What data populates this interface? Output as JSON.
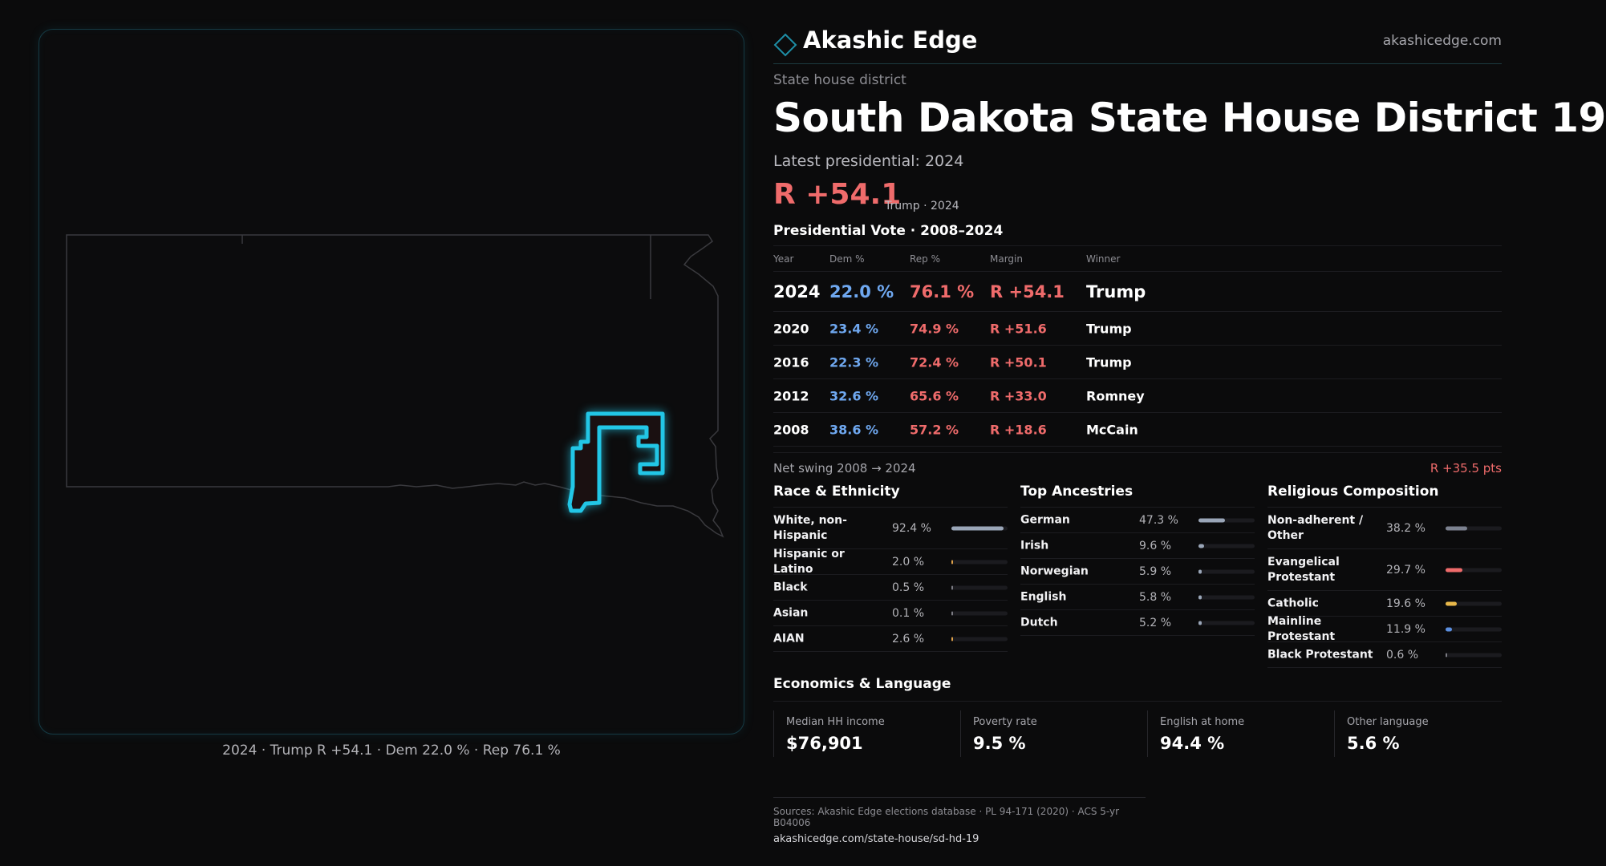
{
  "brand": {
    "name": "Akashic Edge",
    "url": "akashicedge.com",
    "logo_icon": "diamond-outline-icon",
    "accent": "#1e8ea6"
  },
  "header": {
    "kicker": "State house district",
    "title": "South Dakota State House District 19",
    "latest": "Latest presidential: 2024",
    "margin": "R +54.1",
    "margin_note": "Trump · 2024"
  },
  "colors": {
    "dem": "#6fa8f0",
    "rep": "#ef6b6b",
    "district_stroke": "#22c6e6",
    "district_fill": "#1a1011"
  },
  "vote": {
    "title": "Presidential Vote · 2008–2024",
    "columns": [
      "Year",
      "Dem %",
      "Rep %",
      "Margin",
      "Winner"
    ],
    "rows": [
      {
        "year": "2024",
        "dem": "22.0 %",
        "rep": "76.1 %",
        "margin": "R +54.1",
        "winner": "Trump"
      },
      {
        "year": "2020",
        "dem": "23.4 %",
        "rep": "74.9 %",
        "margin": "R +51.6",
        "winner": "Trump"
      },
      {
        "year": "2016",
        "dem": "22.3 %",
        "rep": "72.4 %",
        "margin": "R +50.1",
        "winner": "Trump"
      },
      {
        "year": "2012",
        "dem": "32.6 %",
        "rep": "65.6 %",
        "margin": "R +33.0",
        "winner": "Romney"
      },
      {
        "year": "2008",
        "dem": "38.6 %",
        "rep": "57.2 %",
        "margin": "R +18.6",
        "winner": "McCain"
      }
    ],
    "swing_label": "Net swing 2008 → 2024",
    "swing_value": "R +35.5 pts"
  },
  "race": {
    "title": "Race & Ethnicity",
    "rows": [
      {
        "label": "White, non-Hispanic",
        "value": "92.4 %",
        "pct": 92.4,
        "color": "#9aa6b8"
      },
      {
        "label": "Hispanic or Latino",
        "value": "2.0 %",
        "pct": 2.0,
        "color": "#e0a24a"
      },
      {
        "label": "Black",
        "value": "0.5 %",
        "pct": 0.5,
        "color": "#7c7c84"
      },
      {
        "label": "Asian",
        "value": "0.1 %",
        "pct": 0.1,
        "color": "#7c7c84"
      },
      {
        "label": "AIAN",
        "value": "2.6 %",
        "pct": 2.6,
        "color": "#e0a24a"
      }
    ]
  },
  "ancestry": {
    "title": "Top Ancestries",
    "rows": [
      {
        "label": "German",
        "value": "47.3 %",
        "pct": 47.3,
        "color": "#9aa6b8"
      },
      {
        "label": "Irish",
        "value": "9.6 %",
        "pct": 9.6,
        "color": "#9aa6b8"
      },
      {
        "label": "Norwegian",
        "value": "5.9 %",
        "pct": 5.9,
        "color": "#9aa6b8"
      },
      {
        "label": "English",
        "value": "5.8 %",
        "pct": 5.8,
        "color": "#9aa6b8"
      },
      {
        "label": "Dutch",
        "value": "5.2 %",
        "pct": 5.2,
        "color": "#9aa6b8"
      }
    ]
  },
  "religion": {
    "title": "Religious Composition",
    "rows": [
      {
        "label": "Non-adherent / Other",
        "value": "38.2 %",
        "pct": 38.2,
        "color": "#7c8290"
      },
      {
        "label": "Evangelical Protestant",
        "value": "29.7 %",
        "pct": 29.7,
        "color": "#ef6b6b"
      },
      {
        "label": "Catholic",
        "value": "19.6 %",
        "pct": 19.6,
        "color": "#e8b84a"
      },
      {
        "label": "Mainline Protestant",
        "value": "11.9 %",
        "pct": 11.9,
        "color": "#5b8fe0"
      },
      {
        "label": "Black Protestant",
        "value": "0.6 %",
        "pct": 0.6,
        "color": "#7c7c84"
      }
    ]
  },
  "economics": {
    "title": "Economics & Language",
    "items": [
      {
        "label": "Median HH income",
        "value": "$76,901"
      },
      {
        "label": "Poverty rate",
        "value": "9.5 %"
      },
      {
        "label": "English at home",
        "value": "94.4 %"
      },
      {
        "label": "Other language",
        "value": "5.6 %"
      }
    ]
  },
  "sources": {
    "line": "Sources: Akashic Edge elections database · PL 94-171 (2020) · ACS 5-yr B04006",
    "url": "akashicedge.com/state-house/sd-hd-19"
  },
  "map": {
    "caption": "2024 · Trump R +54.1 · Dem 22.0 % · Rep 76.1 %"
  }
}
